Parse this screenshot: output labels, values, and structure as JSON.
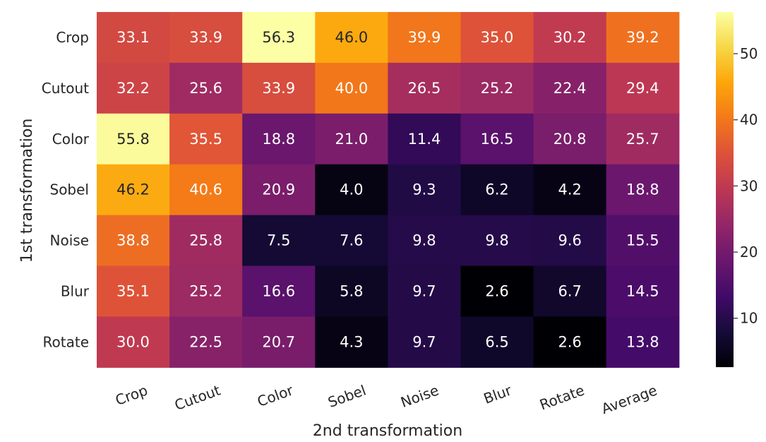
{
  "chart_data": {
    "type": "heatmap",
    "colormap": "inferno",
    "xlabel": "2nd transformation",
    "ylabel": "1st transformation",
    "x_categories": [
      "Crop",
      "Cutout",
      "Color",
      "Sobel",
      "Noise",
      "Blur",
      "Rotate",
      "Average"
    ],
    "y_categories": [
      "Crop",
      "Cutout",
      "Color",
      "Sobel",
      "Noise",
      "Blur",
      "Rotate"
    ],
    "values": [
      [
        33.1,
        33.9,
        56.3,
        46.0,
        39.9,
        35.0,
        30.2,
        39.2
      ],
      [
        32.2,
        25.6,
        33.9,
        40.0,
        26.5,
        25.2,
        22.4,
        29.4
      ],
      [
        55.8,
        35.5,
        18.8,
        21.0,
        11.4,
        16.5,
        20.8,
        25.7
      ],
      [
        46.2,
        40.6,
        20.9,
        4.0,
        9.3,
        6.2,
        4.2,
        18.8
      ],
      [
        38.8,
        25.8,
        7.5,
        7.6,
        9.8,
        9.8,
        9.6,
        15.5
      ],
      [
        35.1,
        25.2,
        16.6,
        5.8,
        9.7,
        2.6,
        6.7,
        14.5
      ],
      [
        30.0,
        22.5,
        20.7,
        4.3,
        9.7,
        6.5,
        2.6,
        13.8
      ]
    ],
    "value_labels": [
      [
        "33.1",
        "33.9",
        "56.3",
        "46.0",
        "39.9",
        "35.0",
        "30.2",
        "39.2"
      ],
      [
        "32.2",
        "25.6",
        "33.9",
        "40.0",
        "26.5",
        "25.2",
        "22.4",
        "29.4"
      ],
      [
        "55.8",
        "35.5",
        "18.8",
        "21.0",
        "11.4",
        "16.5",
        "20.8",
        "25.7"
      ],
      [
        "46.2",
        "40.6",
        "20.9",
        "4.0",
        "9.3",
        "6.2",
        "4.2",
        "18.8"
      ],
      [
        "38.8",
        "25.8",
        "7.5",
        "7.6",
        "9.8",
        "9.8",
        "9.6",
        "15.5"
      ],
      [
        "35.1",
        "25.2",
        "16.6",
        "5.8",
        "9.7",
        "2.6",
        "6.7",
        "14.5"
      ],
      [
        "30.0",
        "22.5",
        "20.7",
        "4.3",
        "9.7",
        "6.5",
        "2.6",
        "13.8"
      ]
    ],
    "color_range": [
      2.6,
      56.3
    ],
    "colorbar_ticks": [
      10,
      20,
      30,
      40,
      50
    ],
    "colorbar_tick_labels": [
      "10",
      "20",
      "30",
      "40",
      "50"
    ]
  }
}
